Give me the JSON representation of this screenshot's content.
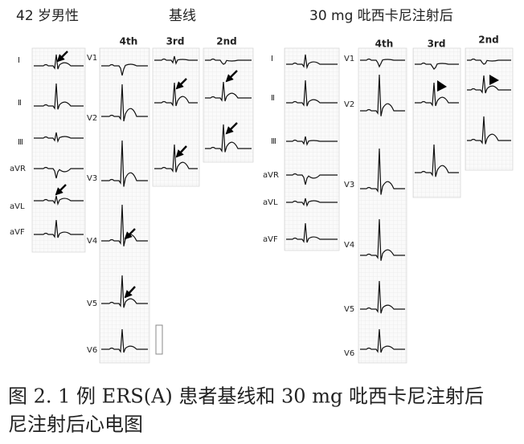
{
  "header": {
    "left_title": "42 岁男性",
    "middle_title": "基线",
    "right_title": "30 mg 吡西卡尼注射后"
  },
  "baseline_columns": [
    "4th",
    "3rd",
    "2nd"
  ],
  "after_columns": [
    "4th",
    "3rd",
    "2nd"
  ],
  "limb_leads": [
    "I",
    "Ⅱ",
    "Ⅲ",
    "aVR",
    "aVL",
    "aVF"
  ],
  "precordial_leads": [
    "V1",
    "V2",
    "V3",
    "V4",
    "V5",
    "V6"
  ],
  "caption": [
    "图 2. 1 例 ERS(A) 患者基线和 30 mg 吡西卡尼注射后",
    "尼注射后心电图"
  ]
}
